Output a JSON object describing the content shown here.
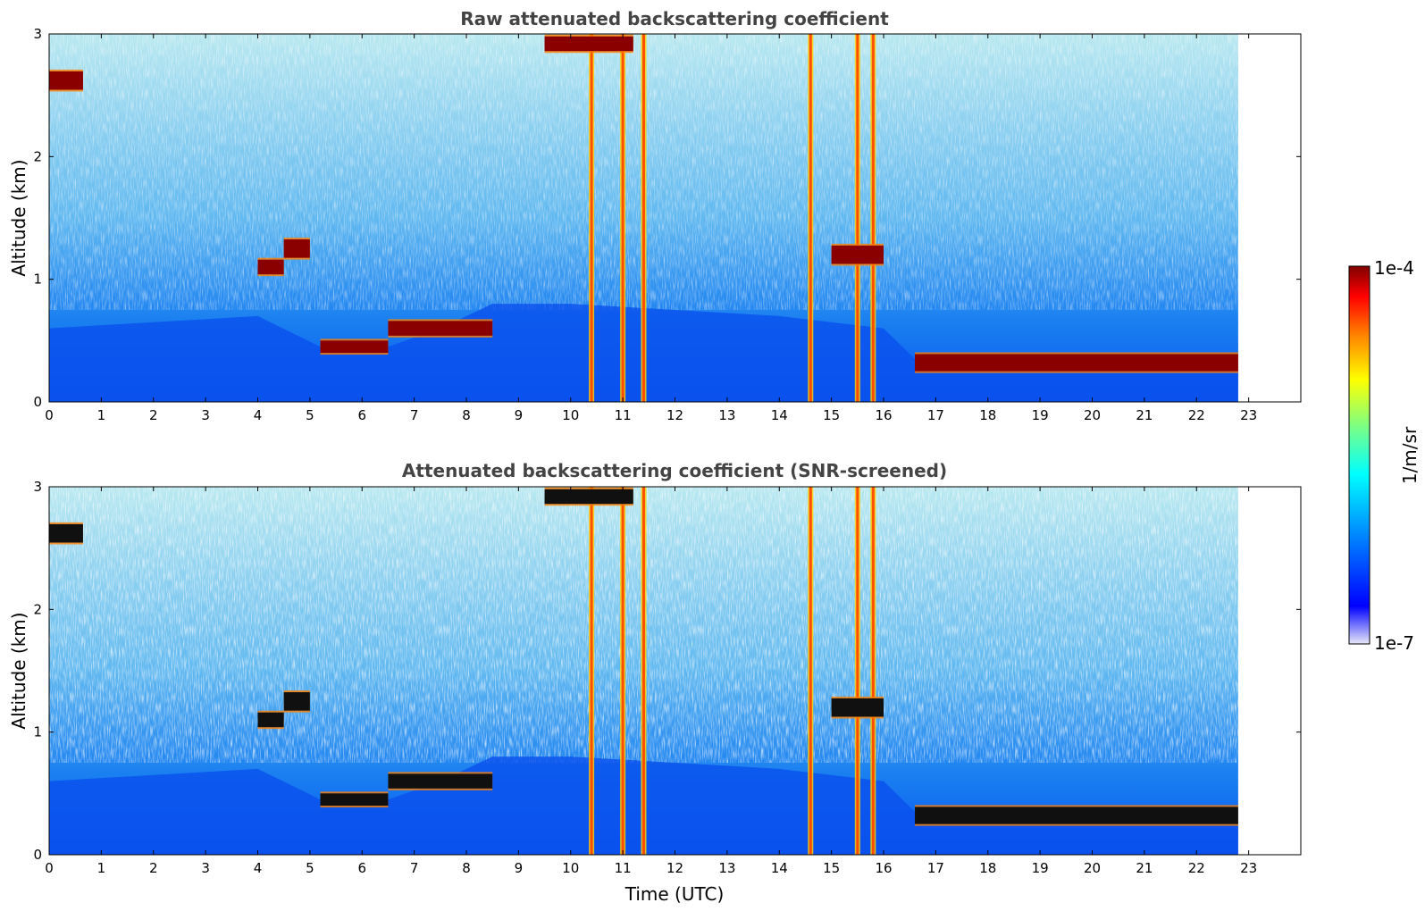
{
  "chart_data": [
    {
      "type": "heatmap",
      "title": "Raw attenuated backscattering coefficient",
      "xlabel": "",
      "ylabel": "Altitude (km)",
      "xlim": [
        0,
        24
      ],
      "ylim": [
        0,
        3
      ],
      "x_ticks": [
        "0",
        "1",
        "2",
        "3",
        "4",
        "5",
        "6",
        "7",
        "8",
        "9",
        "10",
        "11",
        "12",
        "13",
        "14",
        "15",
        "16",
        "17",
        "18",
        "19",
        "20",
        "21",
        "22",
        "23"
      ],
      "y_ticks": [
        "0",
        "1",
        "2",
        "3"
      ],
      "data_end_hour": 22.8,
      "features": {
        "boundary_layer_top_km": [
          [
            0,
            0.6
          ],
          [
            4,
            0.7
          ],
          [
            5.2,
            0.45
          ],
          [
            6.5,
            0.45
          ],
          [
            7.5,
            0.6
          ],
          [
            8.5,
            0.8
          ],
          [
            10,
            0.8
          ],
          [
            12,
            0.75
          ],
          [
            14,
            0.7
          ],
          [
            16,
            0.6
          ],
          [
            16.6,
            0.35
          ],
          [
            18,
            0.35
          ],
          [
            19,
            0.38
          ],
          [
            20,
            0.35
          ],
          [
            21,
            0.33
          ],
          [
            22,
            0.3
          ],
          [
            22.8,
            0.28
          ]
        ],
        "cloud_layers": [
          {
            "x0": 0.0,
            "x1": 0.65,
            "y": 2.62,
            "thickness": 0.15
          },
          {
            "x0": 4.0,
            "x1": 4.5,
            "y": 1.1,
            "thickness": 0.12
          },
          {
            "x0": 4.5,
            "x1": 5.0,
            "y": 1.25,
            "thickness": 0.15
          },
          {
            "x0": 5.2,
            "x1": 6.5,
            "y": 0.45,
            "thickness": 0.1
          },
          {
            "x0": 6.5,
            "x1": 8.5,
            "y": 0.6,
            "thickness": 0.12
          },
          {
            "x0": 9.5,
            "x1": 11.2,
            "y": 2.92,
            "thickness": 0.12
          },
          {
            "x0": 15.0,
            "x1": 16.0,
            "y": 1.2,
            "thickness": 0.15
          },
          {
            "x0": 16.6,
            "x1": 22.8,
            "y": 0.32,
            "thickness": 0.14
          }
        ],
        "precipitation_columns": [
          10.4,
          11.0,
          11.4,
          14.6,
          15.5,
          15.8
        ]
      }
    },
    {
      "type": "heatmap",
      "title": "Attenuated backscattering coefficient (SNR-screened)",
      "xlabel": "Time (UTC)",
      "ylabel": "Altitude (km)",
      "xlim": [
        0,
        24
      ],
      "ylim": [
        0,
        3
      ],
      "x_ticks": [
        "0",
        "1",
        "2",
        "3",
        "4",
        "5",
        "6",
        "7",
        "8",
        "9",
        "10",
        "11",
        "12",
        "13",
        "14",
        "15",
        "16",
        "17",
        "18",
        "19",
        "20",
        "21",
        "22",
        "23"
      ],
      "y_ticks": [
        "0",
        "1",
        "2",
        "3"
      ],
      "data_end_hour": 22.8
    }
  ],
  "colorbar": {
    "min_label": "1e-7",
    "max_label": "1e-4",
    "unit_label": "1/m/sr",
    "colormap": [
      "#e8e8f8",
      "#0000ff",
      "#0090ff",
      "#00ffff",
      "#80ff80",
      "#ffff00",
      "#ff8000",
      "#ff0000",
      "#800000"
    ]
  }
}
